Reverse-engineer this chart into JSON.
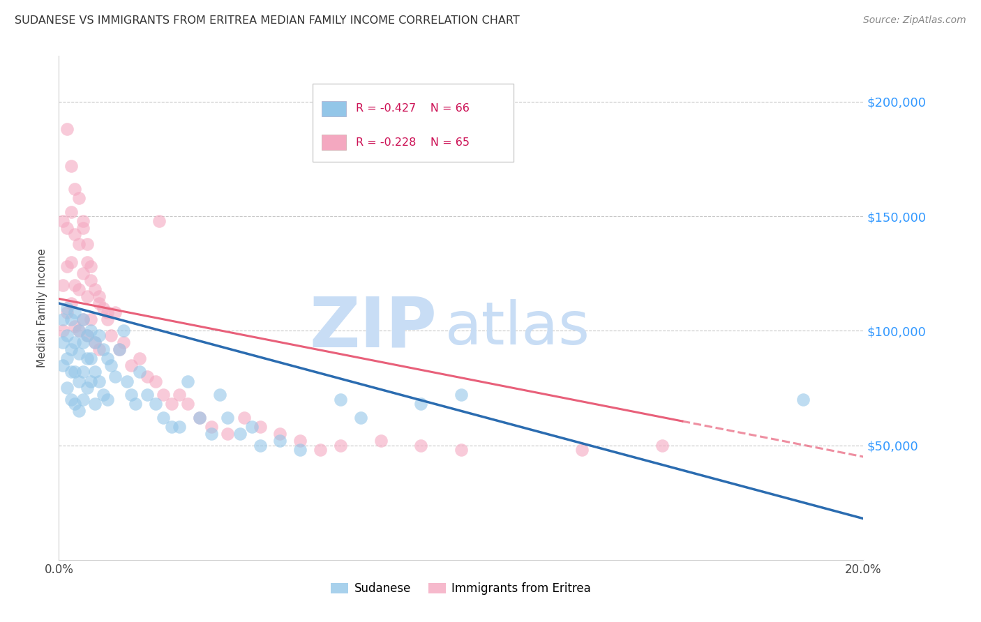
{
  "title": "SUDANESE VS IMMIGRANTS FROM ERITREA MEDIAN FAMILY INCOME CORRELATION CHART",
  "source": "Source: ZipAtlas.com",
  "ylabel": "Median Family Income",
  "xlim": [
    0.0,
    0.2
  ],
  "ylim": [
    0,
    220000
  ],
  "yticks": [
    0,
    50000,
    100000,
    150000,
    200000
  ],
  "xtick_positions": [
    0.0,
    0.2
  ],
  "xtick_labels": [
    "0.0%",
    "20.0%"
  ],
  "blue_color": "#93c6e8",
  "pink_color": "#f4a8c0",
  "blue_line_color": "#2b6cb0",
  "pink_line_color": "#e8607a",
  "legend_R_blue": "R = -0.427",
  "legend_N_blue": "N = 66",
  "legend_R_pink": "R = -0.228",
  "legend_N_pink": "N = 65",
  "legend_label_blue": "Sudanese",
  "legend_label_pink": "Immigrants from Eritrea",
  "watermark_zip": "ZIP",
  "watermark_atlas": "atlas",
  "watermark_color": "#c8ddf5",
  "blue_line_x0": 0.0,
  "blue_line_y0": 112000,
  "blue_line_x1": 0.2,
  "blue_line_y1": 18000,
  "pink_line_x0": 0.0,
  "pink_line_y0": 114000,
  "pink_line_x1": 0.2,
  "pink_line_y1": 45000,
  "blue_scatter_x": [
    0.001,
    0.001,
    0.001,
    0.002,
    0.002,
    0.002,
    0.002,
    0.003,
    0.003,
    0.003,
    0.003,
    0.004,
    0.004,
    0.004,
    0.004,
    0.005,
    0.005,
    0.005,
    0.005,
    0.006,
    0.006,
    0.006,
    0.006,
    0.007,
    0.007,
    0.007,
    0.008,
    0.008,
    0.008,
    0.009,
    0.009,
    0.009,
    0.01,
    0.01,
    0.011,
    0.011,
    0.012,
    0.012,
    0.013,
    0.014,
    0.015,
    0.016,
    0.017,
    0.018,
    0.019,
    0.02,
    0.022,
    0.024,
    0.026,
    0.028,
    0.03,
    0.032,
    0.035,
    0.038,
    0.04,
    0.042,
    0.045,
    0.048,
    0.05,
    0.055,
    0.06,
    0.07,
    0.075,
    0.09,
    0.1,
    0.185
  ],
  "blue_scatter_y": [
    105000,
    95000,
    85000,
    110000,
    98000,
    88000,
    75000,
    105000,
    92000,
    82000,
    70000,
    108000,
    95000,
    82000,
    68000,
    100000,
    90000,
    78000,
    65000,
    105000,
    95000,
    82000,
    70000,
    98000,
    88000,
    75000,
    100000,
    88000,
    78000,
    95000,
    82000,
    68000,
    98000,
    78000,
    92000,
    72000,
    88000,
    70000,
    85000,
    80000,
    92000,
    100000,
    78000,
    72000,
    68000,
    82000,
    72000,
    68000,
    62000,
    58000,
    58000,
    78000,
    62000,
    55000,
    72000,
    62000,
    55000,
    58000,
    50000,
    52000,
    48000,
    70000,
    62000,
    68000,
    72000,
    70000
  ],
  "pink_scatter_x": [
    0.001,
    0.001,
    0.001,
    0.002,
    0.002,
    0.002,
    0.003,
    0.003,
    0.003,
    0.004,
    0.004,
    0.004,
    0.005,
    0.005,
    0.005,
    0.006,
    0.006,
    0.006,
    0.007,
    0.007,
    0.007,
    0.008,
    0.008,
    0.009,
    0.009,
    0.01,
    0.01,
    0.011,
    0.012,
    0.013,
    0.014,
    0.015,
    0.016,
    0.018,
    0.02,
    0.022,
    0.024,
    0.026,
    0.028,
    0.03,
    0.032,
    0.035,
    0.038,
    0.042,
    0.046,
    0.05,
    0.055,
    0.06,
    0.065,
    0.07,
    0.08,
    0.09,
    0.1,
    0.13,
    0.15,
    0.002,
    0.003,
    0.004,
    0.005,
    0.006,
    0.007,
    0.008,
    0.01,
    0.012,
    0.025
  ],
  "pink_scatter_y": [
    148000,
    120000,
    100000,
    145000,
    128000,
    108000,
    152000,
    130000,
    112000,
    142000,
    120000,
    102000,
    138000,
    118000,
    100000,
    145000,
    125000,
    105000,
    130000,
    115000,
    98000,
    122000,
    105000,
    118000,
    95000,
    112000,
    92000,
    110000,
    105000,
    98000,
    108000,
    92000,
    95000,
    85000,
    88000,
    80000,
    78000,
    72000,
    68000,
    72000,
    68000,
    62000,
    58000,
    55000,
    62000,
    58000,
    55000,
    52000,
    48000,
    50000,
    52000,
    50000,
    48000,
    48000,
    50000,
    188000,
    172000,
    162000,
    158000,
    148000,
    138000,
    128000,
    115000,
    108000,
    148000
  ]
}
